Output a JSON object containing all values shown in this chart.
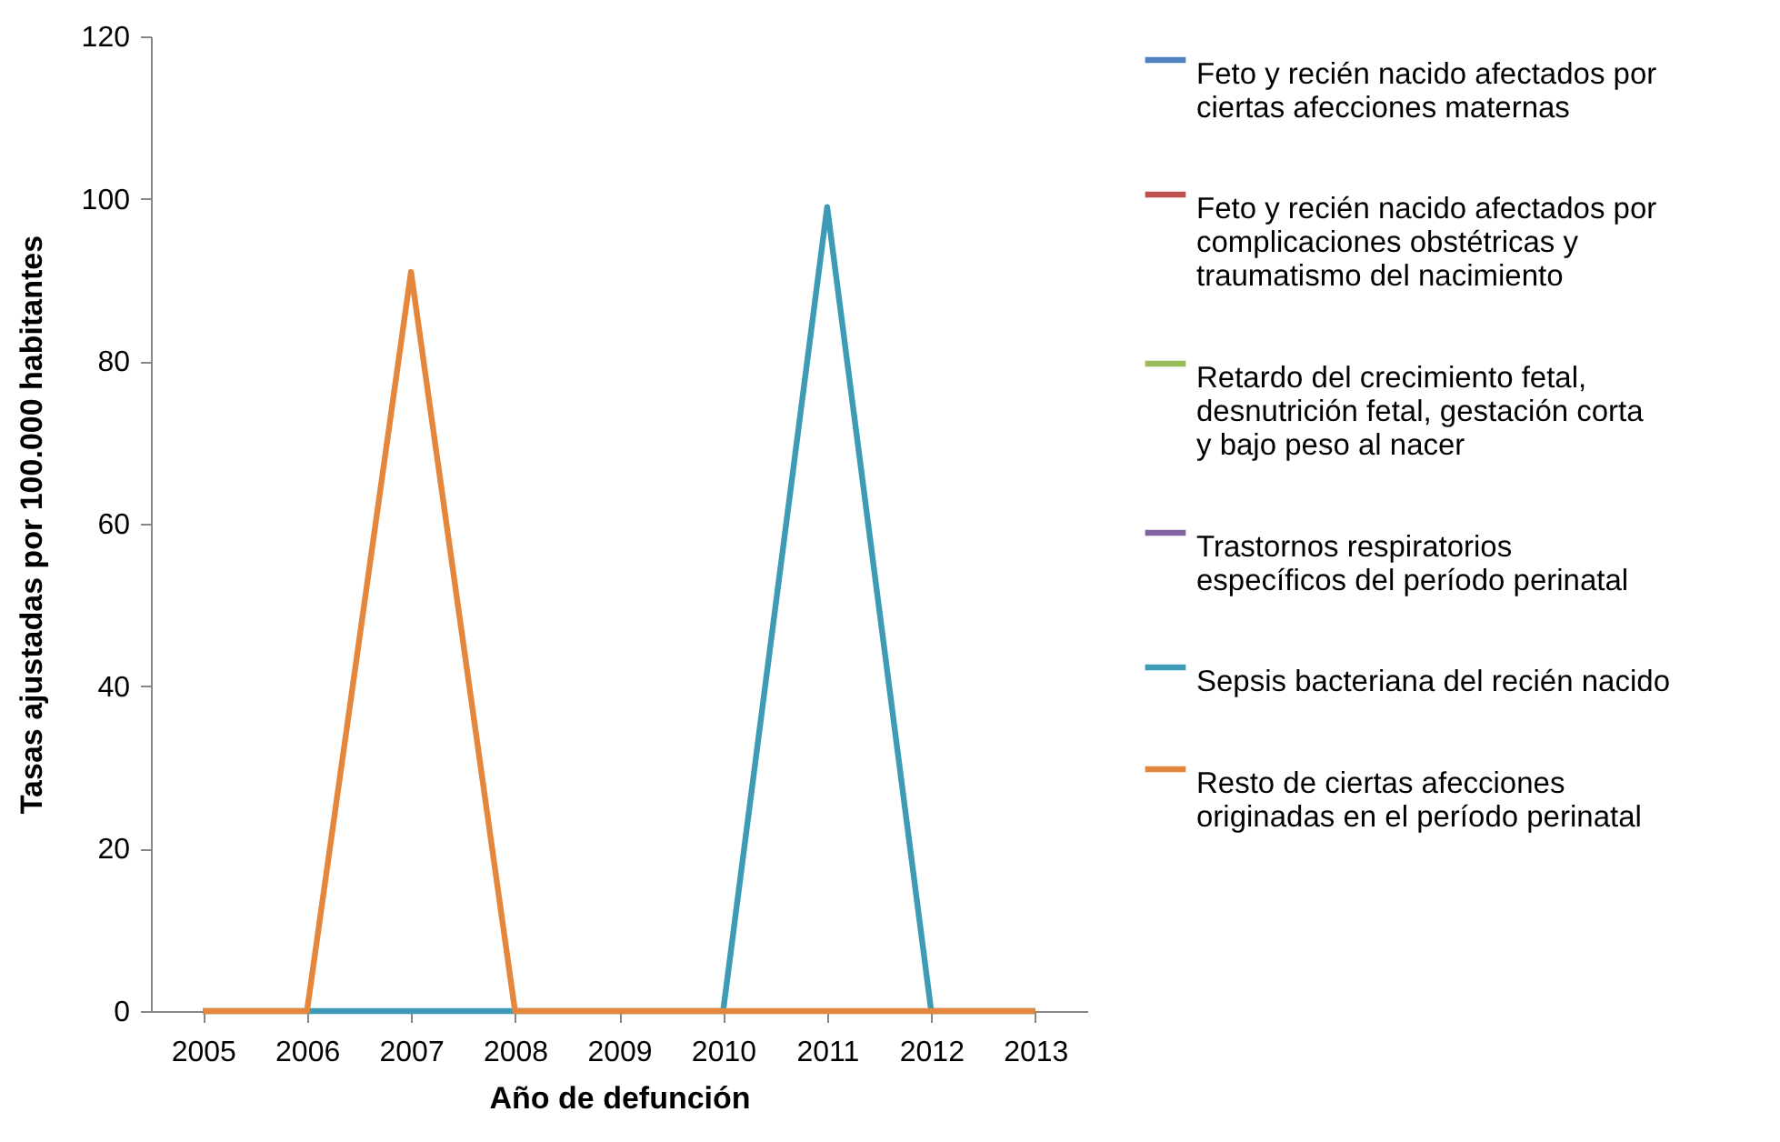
{
  "chart_data": {
    "type": "line",
    "xlabel": "Año de defunción",
    "ylabel": "Tasas ajustadas por 100.000 habitantes",
    "categories": [
      "2005",
      "2006",
      "2007",
      "2008",
      "2009",
      "2010",
      "2011",
      "2012",
      "2013"
    ],
    "ylim": [
      0,
      120
    ],
    "yticks": [
      0,
      20,
      40,
      60,
      80,
      100,
      120
    ],
    "grid": false,
    "legend": "right",
    "marker": "none",
    "line_style": "solid",
    "series": [
      {
        "name": "Feto y recién nacido afectados por ciertas afecciones maternas",
        "color": "#4f81bd",
        "values": [
          null,
          null,
          null,
          null,
          null,
          null,
          null,
          null,
          null
        ]
      },
      {
        "name": "Feto y recién nacido afectados por complicaciones obstétricas y traumatismo del nacimiento",
        "color": "#c0504d",
        "values": [
          null,
          null,
          null,
          null,
          null,
          null,
          null,
          null,
          null
        ]
      },
      {
        "name": "Retardo del crecimiento fetal, desnutrición fetal, gestación corta y bajo peso al nacer",
        "color": "#9bbb59",
        "values": [
          null,
          null,
          null,
          null,
          null,
          null,
          null,
          null,
          null
        ]
      },
      {
        "name": "Trastornos respiratorios específicos del período perinatal",
        "color": "#8064a2",
        "values": [
          null,
          null,
          null,
          null,
          null,
          null,
          null,
          null,
          null
        ]
      },
      {
        "name": "Sepsis bacteriana del recién nacido",
        "color": "#3d9bb5",
        "values": [
          0,
          0,
          0,
          0,
          0,
          0,
          99,
          0,
          0
        ]
      },
      {
        "name": "Resto de ciertas afecciones originadas en el período perinatal",
        "color": "#e4873c",
        "values": [
          0,
          0,
          91,
          0,
          0,
          0,
          0,
          0,
          0
        ]
      }
    ]
  }
}
